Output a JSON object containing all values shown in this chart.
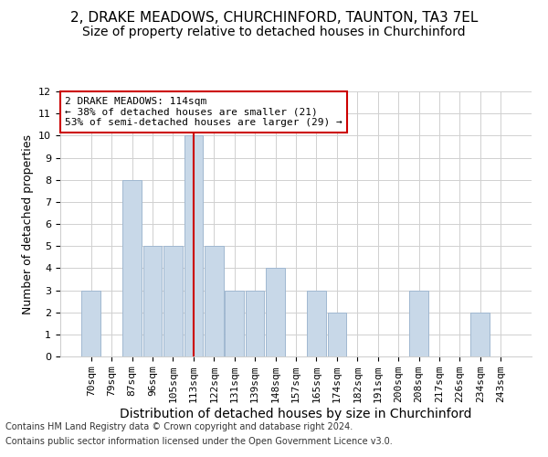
{
  "title1": "2, DRAKE MEADOWS, CHURCHINFORD, TAUNTON, TA3 7EL",
  "title2": "Size of property relative to detached houses in Churchinford",
  "xlabel": "Distribution of detached houses by size in Churchinford",
  "ylabel": "Number of detached properties",
  "bins": [
    70,
    79,
    87,
    96,
    105,
    113,
    122,
    131,
    139,
    148,
    157,
    165,
    174,
    182,
    191,
    200,
    208,
    217,
    226,
    234,
    243
  ],
  "heights": [
    3,
    0,
    8,
    5,
    5,
    10,
    5,
    3,
    3,
    4,
    0,
    3,
    2,
    0,
    0,
    0,
    3,
    0,
    0,
    2,
    0
  ],
  "bar_color": "#c8d8e8",
  "bar_edgecolor": "#a0b8d0",
  "vline_idx": 5,
  "vline_color": "#cc0000",
  "ylim": [
    0,
    12
  ],
  "yticks": [
    0,
    1,
    2,
    3,
    4,
    5,
    6,
    7,
    8,
    9,
    10,
    11,
    12
  ],
  "annotation_text": "2 DRAKE MEADOWS: 114sqm\n← 38% of detached houses are smaller (21)\n53% of semi-detached houses are larger (29) →",
  "annotation_box_edgecolor": "#cc0000",
  "footnote1": "Contains HM Land Registry data © Crown copyright and database right 2024.",
  "footnote2": "Contains public sector information licensed under the Open Government Licence v3.0.",
  "title1_fontsize": 11,
  "title2_fontsize": 10,
  "xlabel_fontsize": 10,
  "ylabel_fontsize": 9,
  "tick_fontsize": 8,
  "annotation_fontsize": 8,
  "footnote_fontsize": 7
}
